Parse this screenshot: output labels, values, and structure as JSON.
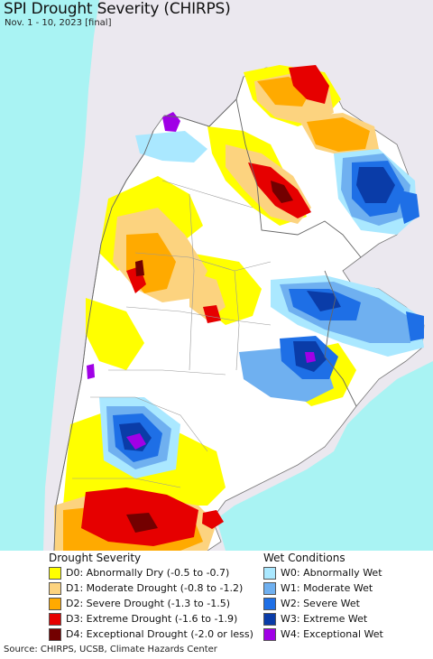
{
  "title": "SPI Drought Severity (CHIRPS)",
  "subtitle": "Nov. 1 - 10, 2023 [final]",
  "colors": {
    "ocean": "#a9f3f3",
    "neighbor_land": "#ebe8ef",
    "region_land": "#ffffff",
    "borders": "#777777"
  },
  "legend_drought": {
    "title": "Drought Severity",
    "items": [
      {
        "code": "D0",
        "label": "D0: Abnormally Dry (-0.5 to -0.7)",
        "color": "#ffff00"
      },
      {
        "code": "D1",
        "label": "D1: Moderate Drought (-0.8 to -1.2)",
        "color": "#fcd37f"
      },
      {
        "code": "D2",
        "label": "D2: Severe Drought (-1.3 to -1.5)",
        "color": "#ffaa00"
      },
      {
        "code": "D3",
        "label": "D3: Extreme Drought (-1.6 to -1.9)",
        "color": "#e60000"
      },
      {
        "code": "D4",
        "label": "D4: Exceptional Drought (-2.0 or less)",
        "color": "#730000"
      }
    ]
  },
  "legend_wet": {
    "title": "Wet Conditions",
    "items": [
      {
        "code": "W0",
        "label": "W0: Abnormally Wet",
        "color": "#aae8ff"
      },
      {
        "code": "W1",
        "label": "W1: Moderate Wet",
        "color": "#6fb0f0"
      },
      {
        "code": "W2",
        "label": "W2: Severe Wet",
        "color": "#1e6fe6"
      },
      {
        "code": "W3",
        "label": "W3: Extreme Wet",
        "color": "#0a3ca8"
      },
      {
        "code": "W4",
        "label": "W4: Exceptional Wet",
        "color": "#a000e6"
      }
    ]
  },
  "source": "Source: CHIRPS, UCSB, Climate Hazards Center"
}
